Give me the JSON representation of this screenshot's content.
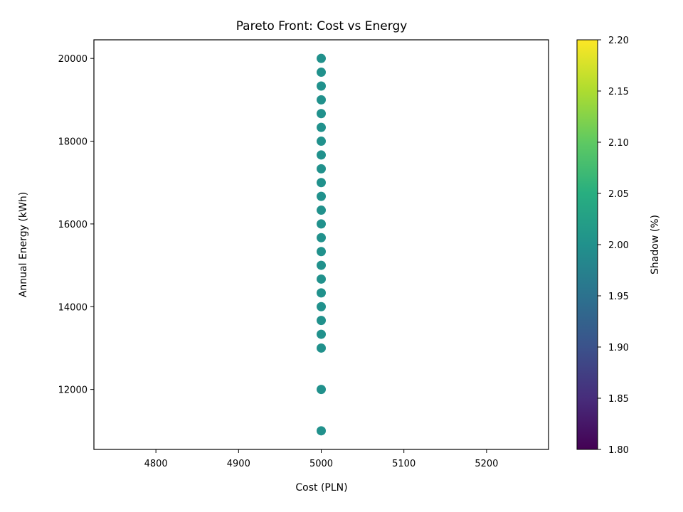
{
  "chart_data": {
    "type": "scatter",
    "title": "Pareto Front: Cost vs Energy",
    "xlabel": "Cost (PLN)",
    "ylabel": "Annual Energy (kWh)",
    "xlim": [
      4725,
      5275
    ],
    "ylim": [
      10550,
      20450
    ],
    "xticks": [
      4800,
      4900,
      5000,
      5100,
      5200
    ],
    "yticks": [
      12000,
      14000,
      16000,
      18000,
      20000
    ],
    "grid": false,
    "points": [
      {
        "x": 5000,
        "y": 11000,
        "shadow": 2.0
      },
      {
        "x": 5000,
        "y": 12000,
        "shadow": 2.0
      },
      {
        "x": 5000,
        "y": 13000,
        "shadow": 2.0
      },
      {
        "x": 5000,
        "y": 13333,
        "shadow": 2.0
      },
      {
        "x": 5000,
        "y": 13667,
        "shadow": 2.0
      },
      {
        "x": 5000,
        "y": 14000,
        "shadow": 2.0
      },
      {
        "x": 5000,
        "y": 14333,
        "shadow": 2.0
      },
      {
        "x": 5000,
        "y": 14667,
        "shadow": 2.0
      },
      {
        "x": 5000,
        "y": 15000,
        "shadow": 2.0
      },
      {
        "x": 5000,
        "y": 15333,
        "shadow": 2.0
      },
      {
        "x": 5000,
        "y": 15667,
        "shadow": 2.0
      },
      {
        "x": 5000,
        "y": 16000,
        "shadow": 2.0
      },
      {
        "x": 5000,
        "y": 16333,
        "shadow": 2.0
      },
      {
        "x": 5000,
        "y": 16667,
        "shadow": 2.0
      },
      {
        "x": 5000,
        "y": 17000,
        "shadow": 2.0
      },
      {
        "x": 5000,
        "y": 17333,
        "shadow": 2.0
      },
      {
        "x": 5000,
        "y": 17667,
        "shadow": 2.0
      },
      {
        "x": 5000,
        "y": 18000,
        "shadow": 2.0
      },
      {
        "x": 5000,
        "y": 18333,
        "shadow": 2.0
      },
      {
        "x": 5000,
        "y": 18667,
        "shadow": 2.0
      },
      {
        "x": 5000,
        "y": 19000,
        "shadow": 2.0
      },
      {
        "x": 5000,
        "y": 19333,
        "shadow": 2.0
      },
      {
        "x": 5000,
        "y": 19667,
        "shadow": 2.0
      },
      {
        "x": 5000,
        "y": 20000,
        "shadow": 2.0
      }
    ],
    "colorbar": {
      "label": "Shadow (%)",
      "colormap": "viridis",
      "range": [
        1.8,
        2.2
      ],
      "ticks": [
        "1.80",
        "1.85",
        "1.90",
        "1.95",
        "2.00",
        "2.05",
        "2.10",
        "2.15",
        "2.20"
      ]
    }
  }
}
